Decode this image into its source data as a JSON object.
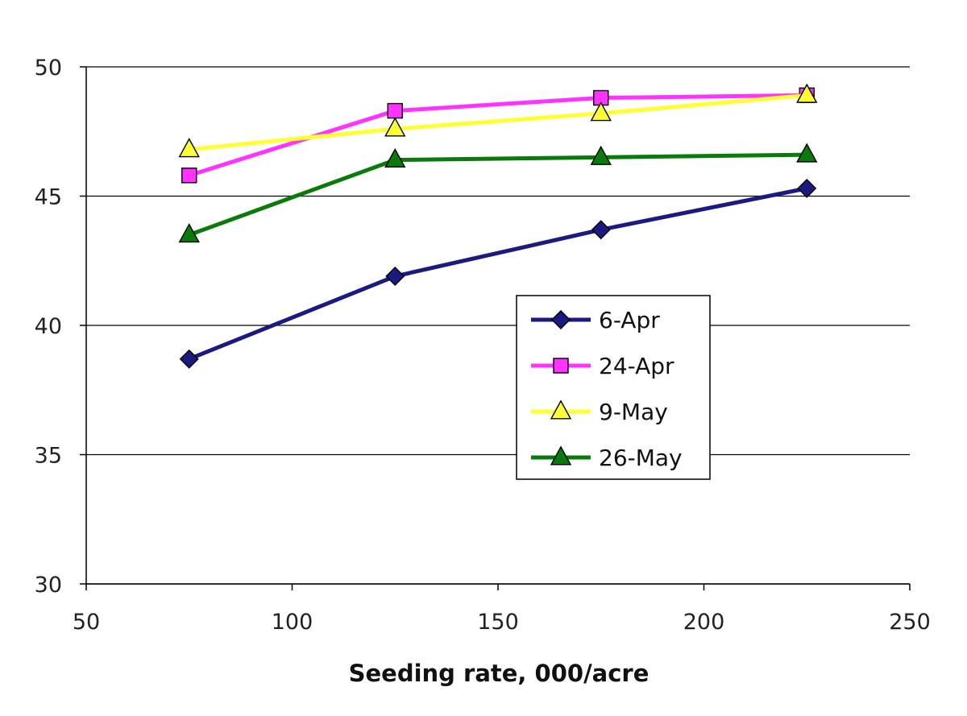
{
  "chart_data": {
    "type": "line",
    "title": "",
    "xlabel": "Seeding rate, 000/acre",
    "ylabel": "",
    "xlim": [
      50,
      250
    ],
    "ylim": [
      30,
      50
    ],
    "x_ticks": [
      50,
      100,
      150,
      200,
      250
    ],
    "y_ticks": [
      30,
      35,
      40,
      45,
      50
    ],
    "grid": "horizontal",
    "legend_position": "center-right",
    "x": [
      75,
      125,
      175,
      225
    ],
    "series": [
      {
        "name": "6-Apr",
        "values": [
          38.7,
          41.9,
          43.7,
          45.3
        ],
        "color": "#1a1a80",
        "marker": "diamond",
        "marker_fill": "#1a1a80"
      },
      {
        "name": "24-Apr",
        "values": [
          45.8,
          48.3,
          48.8,
          48.9
        ],
        "color": "#ff33ff",
        "marker": "square",
        "marker_fill": "#ff33ff"
      },
      {
        "name": "9-May",
        "values": [
          46.8,
          47.6,
          48.2,
          48.9
        ],
        "color": "#ffff33",
        "marker": "triangle",
        "marker_fill": "#ffff33"
      },
      {
        "name": "26-May",
        "values": [
          43.5,
          46.4,
          46.5,
          46.6
        ],
        "color": "#0a7a0a",
        "marker": "triangle",
        "marker_fill": "#0a7a0a"
      }
    ]
  }
}
